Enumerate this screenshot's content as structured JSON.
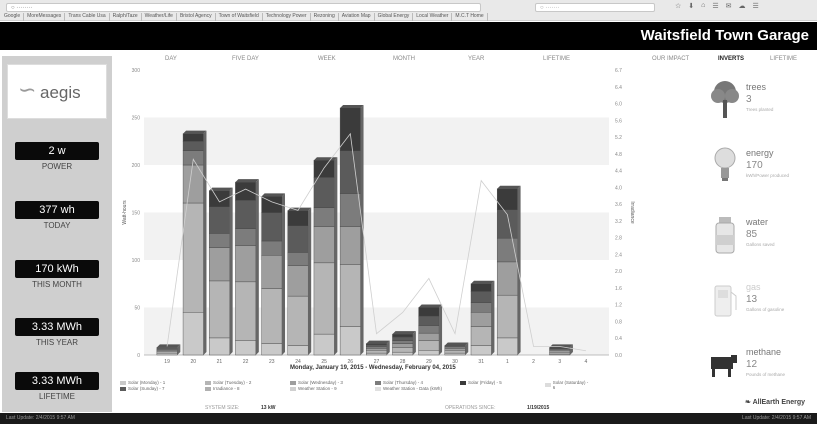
{
  "browser": {
    "address": "○ ········",
    "search_placeholder": "○ ·······",
    "toolbar_icons": [
      "☆",
      "⬇",
      "⌂",
      "☰",
      "✉",
      "☁",
      "☰"
    ],
    "bookmarks": [
      "Google",
      "MoreMessages",
      "Trans Cable Usa",
      "Ralph/Taze",
      "Weather/Life",
      "Bristol Agency",
      "Town of Waitsfield",
      "Technology Power",
      "Rezoning",
      "Aviation Map",
      "Global Energy",
      "Local Weather",
      "M.C.T Home"
    ]
  },
  "header": {
    "title": "Waitsfield Town Garage"
  },
  "left": {
    "logo_text": "aegis",
    "stats": [
      {
        "value": "2 w",
        "label": "POWER"
      },
      {
        "value": "377 wh",
        "label": "TODAY"
      },
      {
        "value": "170 kWh",
        "label": "THIS MONTH"
      },
      {
        "value": "3.33 MWh",
        "label": "THIS YEAR"
      },
      {
        "value": "3.33 MWh",
        "label": "LIFETIME"
      }
    ]
  },
  "timeframe_tabs": [
    "DAY",
    "FIVE DAY",
    "WEEK",
    "MONTH",
    "YEAR",
    "LIFETIME"
  ],
  "view_tabs": [
    "OUR IMPACT",
    "INVERTS",
    "LIFETIME"
  ],
  "chart_data": {
    "type": "bar",
    "stacked": true,
    "categories": [
      "19",
      "20",
      "21",
      "22",
      "23",
      "24",
      "25",
      "26",
      "27",
      "28",
      "29",
      "30",
      "31",
      "1",
      "2",
      "3",
      "4"
    ],
    "series_colors": [
      "#c9c9c9",
      "#b5b5b5",
      "#9e9e9e",
      "#7c7c7c",
      "#5b5b5b",
      "#3b3b3b"
    ],
    "series": [
      {
        "values": [
          2,
          45,
          18,
          15,
          12,
          10,
          22,
          30,
          2,
          3,
          5,
          2,
          10,
          18,
          0,
          1,
          0
        ]
      },
      {
        "values": [
          2,
          115,
          60,
          62,
          58,
          52,
          75,
          65,
          3,
          5,
          10,
          3,
          20,
          45,
          0,
          2,
          0
        ]
      },
      {
        "values": [
          1,
          40,
          35,
          38,
          35,
          32,
          38,
          40,
          2,
          4,
          8,
          2,
          15,
          35,
          0,
          2,
          0
        ]
      },
      {
        "values": [
          1,
          15,
          15,
          18,
          15,
          14,
          20,
          35,
          2,
          3,
          8,
          2,
          10,
          25,
          0,
          1,
          0
        ]
      },
      {
        "values": [
          2,
          10,
          28,
          30,
          30,
          28,
          32,
          45,
          2,
          4,
          10,
          1,
          12,
          30,
          0,
          1,
          0
        ]
      },
      {
        "values": [
          0,
          8,
          17,
          19,
          17,
          16,
          18,
          45,
          1,
          3,
          9,
          0,
          8,
          22,
          0,
          1,
          0
        ]
      }
    ],
    "line_values": [
      0.2,
      4.6,
      3.6,
      3.9,
      3.6,
      3.4,
      4.4,
      5.2,
      0.5,
      1.0,
      1.8,
      0.5,
      4.1,
      3.3,
      0.2,
      0.2,
      0.1
    ],
    "ylim": [
      0,
      300
    ],
    "y2lim": [
      0,
      6.7
    ],
    "y_ticks": [
      "300",
      "250",
      "200",
      "150",
      "100",
      "50",
      "0"
    ],
    "y2_ticks": [
      "6.7",
      "6.4",
      "6.0",
      "5.6",
      "5.2",
      "4.8",
      "4.4",
      "4.0",
      "3.6",
      "3.2",
      "2.8",
      "2.4",
      "2.0",
      "1.6",
      "1.2",
      "0.8",
      "0.4",
      "0.0"
    ],
    "ylabel": "Watt-hours",
    "y2label": "Irradiance",
    "date_range": "Monday, January 19, 2015 - Wednesday, February 04, 2015",
    "legend": [
      {
        "label": "Solar (Monday) - 1",
        "color": "#c9c9c9"
      },
      {
        "label": "Solar (Tuesday) - 2",
        "color": "#b5b5b5"
      },
      {
        "label": "Solar (Wednesday) - 3",
        "color": "#9e9e9e"
      },
      {
        "label": "Solar (Thursday) - 4",
        "color": "#7c7c7c"
      },
      {
        "label": "Solar (Friday) - 5",
        "color": "#3b3b3b"
      },
      {
        "label": "Solar (Saturday) - 6",
        "color": "#dcdcdc"
      },
      {
        "label": "Solar (Sunday) - 7",
        "color": "#5b5b5b"
      },
      {
        "label": "Irradiance - 8",
        "color": "#b0b0b0"
      },
      {
        "label": "Weather Station - 9",
        "color": "#d0d0d0"
      },
      {
        "label": "Weather Station - Data (kWh)",
        "color": "#e0e0e0"
      }
    ]
  },
  "system": {
    "size_label": "SYSTEM SIZE:",
    "size_value": "13 kW",
    "ops_label": "OPERATIONS SINCE:",
    "ops_value": "1/19/2015"
  },
  "impact": [
    {
      "name": "trees",
      "value": "3",
      "sub": "Trees planted",
      "icon": "tree-icon"
    },
    {
      "name": "energy",
      "value": "170",
      "sub": "kWh/Power produced",
      "icon": "lightbulb-icon"
    },
    {
      "name": "water",
      "value": "85",
      "sub": "Gallons saved",
      "icon": "water-bottle-icon"
    },
    {
      "name": "gas",
      "value": "13",
      "sub": "Gallons of gasoline",
      "icon": "gas-pump-icon"
    },
    {
      "name": "methane",
      "value": "12",
      "sub": "Pounds of methane",
      "icon": "cow-icon"
    }
  ],
  "brand": "AllEarth Energy",
  "footer": {
    "left": "Last Update: 2/4/2015 9:57 AM",
    "right": "Last Update: 2/4/2015 9:57 AM"
  }
}
